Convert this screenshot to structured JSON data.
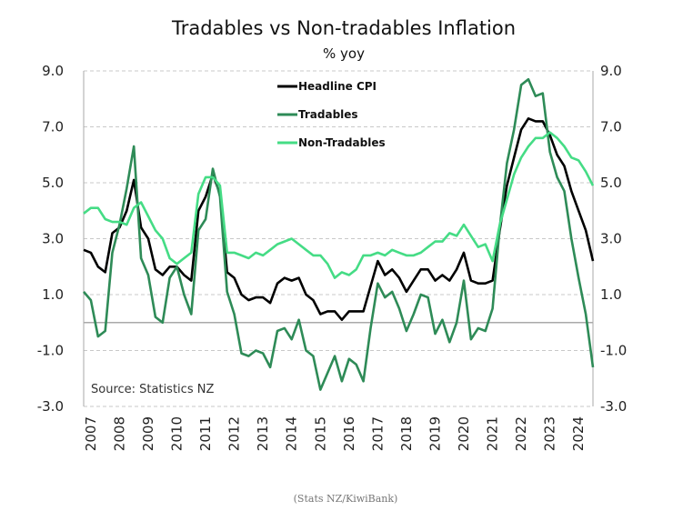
{
  "chart_data": {
    "type": "line",
    "title": "Tradables vs Non-tradables Inflation",
    "subtitle": "% yoy",
    "source_note": "Source:  Statistics NZ",
    "footer": "(Stats NZ/KiwiBank)",
    "ylim": [
      -3,
      9
    ],
    "yticks": [
      "9.0",
      "7.0",
      "5.0",
      "3.0",
      "1.0",
      "-1.0",
      "-3.0"
    ],
    "xticks": [
      "2007",
      "2008",
      "2009",
      "2010",
      "2011",
      "2012",
      "2013",
      "2014",
      "2015",
      "2016",
      "2017",
      "2018",
      "2019",
      "2020",
      "2021",
      "2022",
      "2023",
      "2024"
    ],
    "x_start": "2006 Q4",
    "x_end": "2024 Q3",
    "frequency": "quarterly",
    "grid": "horizontal dashed",
    "legend": "top-center",
    "series": [
      {
        "name": "Headline CPI",
        "color": "#000000",
        "values": [
          2.6,
          2.5,
          2.0,
          1.8,
          3.2,
          3.4,
          4.0,
          5.1,
          3.4,
          3.0,
          1.9,
          1.7,
          2.0,
          2.0,
          1.7,
          1.5,
          4.0,
          4.5,
          5.3,
          4.6,
          1.8,
          1.6,
          1.0,
          0.8,
          0.9,
          0.9,
          0.7,
          1.4,
          1.6,
          1.5,
          1.6,
          1.0,
          0.8,
          0.3,
          0.4,
          0.4,
          0.1,
          0.4,
          0.4,
          0.4,
          1.3,
          2.2,
          1.7,
          1.9,
          1.6,
          1.1,
          1.5,
          1.9,
          1.9,
          1.5,
          1.7,
          1.5,
          1.9,
          2.5,
          1.5,
          1.4,
          1.4,
          1.5,
          3.3,
          4.9,
          5.9,
          6.9,
          7.3,
          7.2,
          7.2,
          6.7,
          6.0,
          5.6,
          4.7,
          4.0,
          3.3,
          2.2
        ]
      },
      {
        "name": "Tradables",
        "color": "#2e8b57",
        "values": [
          1.1,
          0.8,
          -0.5,
          -0.3,
          2.5,
          3.5,
          4.8,
          6.3,
          2.3,
          1.7,
          0.2,
          0.0,
          1.6,
          2.0,
          1.0,
          0.3,
          3.3,
          3.7,
          5.5,
          4.5,
          1.1,
          0.3,
          -1.1,
          -1.2,
          -1.0,
          -1.1,
          -1.6,
          -0.3,
          -0.2,
          -0.6,
          0.1,
          -1.0,
          -1.2,
          -2.4,
          -1.8,
          -1.2,
          -2.1,
          -1.3,
          -1.5,
          -2.1,
          -0.2,
          1.4,
          0.9,
          1.1,
          0.5,
          -0.3,
          0.3,
          1.0,
          0.9,
          -0.4,
          0.1,
          -0.7,
          0.0,
          1.5,
          -0.6,
          -0.2,
          -0.3,
          0.5,
          3.4,
          5.7,
          6.9,
          8.5,
          8.7,
          8.1,
          8.2,
          6.1,
          5.2,
          4.7,
          3.0,
          1.6,
          0.3,
          -1.6
        ]
      },
      {
        "name": "Non-Tradables",
        "color": "#45dc85",
        "values": [
          3.9,
          4.1,
          4.1,
          3.7,
          3.6,
          3.6,
          3.5,
          4.1,
          4.3,
          3.8,
          3.3,
          3.0,
          2.3,
          2.1,
          2.3,
          2.5,
          4.6,
          5.2,
          5.2,
          4.9,
          2.5,
          2.5,
          2.4,
          2.3,
          2.5,
          2.4,
          2.6,
          2.8,
          2.9,
          3.0,
          2.8,
          2.6,
          2.4,
          2.4,
          2.1,
          1.6,
          1.8,
          1.7,
          1.9,
          2.4,
          2.4,
          2.5,
          2.4,
          2.6,
          2.5,
          2.4,
          2.4,
          2.5,
          2.7,
          2.9,
          2.9,
          3.2,
          3.1,
          3.5,
          3.1,
          2.7,
          2.8,
          2.2,
          3.5,
          4.4,
          5.3,
          5.9,
          6.3,
          6.6,
          6.6,
          6.8,
          6.6,
          6.3,
          5.9,
          5.8,
          5.4,
          4.9
        ]
      }
    ]
  }
}
